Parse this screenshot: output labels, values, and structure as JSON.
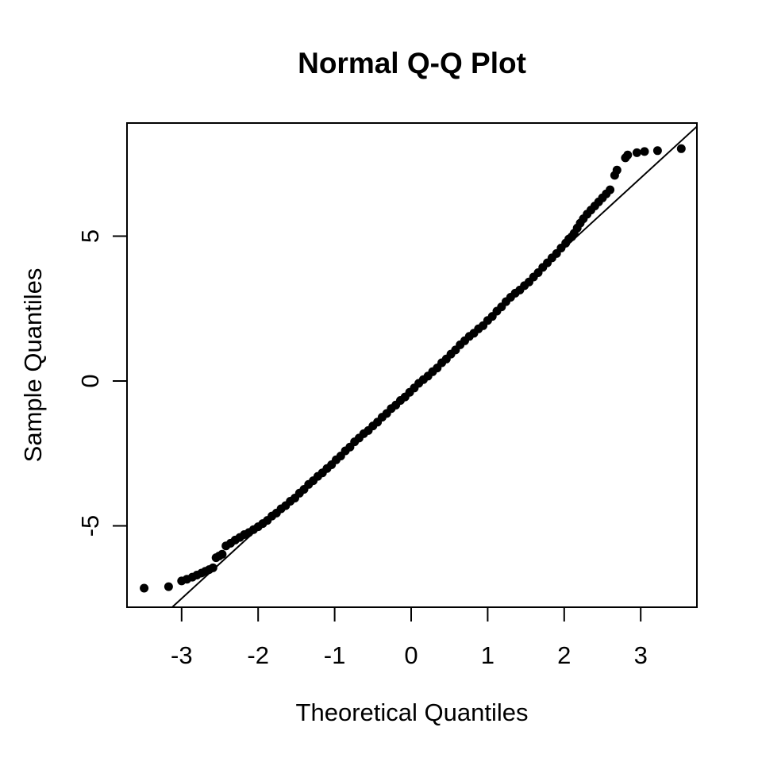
{
  "title": "Normal Q-Q Plot",
  "colors": {
    "foreground": "#000000",
    "background": "#ffffff",
    "point": "#000000",
    "reference_line": "#000000"
  },
  "chart_data": {
    "type": "scatter",
    "title": "Normal Q-Q Plot",
    "xlabel": "Theoretical Quantiles",
    "ylabel": "Sample Quantiles",
    "xlim": [
      -3.73,
      3.8
    ],
    "ylim": [
      -7.8,
      8.9
    ],
    "x_ticks": [
      -3,
      -2,
      -1,
      0,
      1,
      2,
      3
    ],
    "y_ticks": [
      -5,
      0,
      5
    ],
    "grid": false,
    "legend": null,
    "marker": {
      "shape": "filled-circle",
      "radius_px": 5.5,
      "color": "#000000"
    },
    "reference_line": {
      "slope": 2.42,
      "intercept": -0.25,
      "x_start": -3.12,
      "x_end": 3.73
    },
    "points": [
      [
        -3.49,
        -7.15
      ],
      [
        -3.17,
        -7.1
      ],
      [
        -3.0,
        -6.9
      ],
      [
        -2.93,
        -6.84
      ],
      [
        -2.86,
        -6.77
      ],
      [
        -2.8,
        -6.7
      ],
      [
        -2.74,
        -6.63
      ],
      [
        -2.69,
        -6.57
      ],
      [
        -2.64,
        -6.51
      ],
      [
        -2.59,
        -6.45
      ],
      [
        -2.55,
        -6.1
      ],
      [
        -2.51,
        -6.04
      ],
      [
        -2.47,
        -5.98
      ],
      [
        -2.42,
        -5.69
      ],
      [
        -2.36,
        -5.6
      ],
      [
        -2.3,
        -5.49
      ],
      [
        -2.24,
        -5.4
      ],
      [
        -2.18,
        -5.3
      ],
      [
        -2.12,
        -5.23
      ],
      [
        -2.06,
        -5.13
      ],
      [
        -2.0,
        -5.03
      ],
      [
        -1.94,
        -4.92
      ],
      [
        -1.88,
        -4.81
      ],
      [
        -1.82,
        -4.66
      ],
      [
        -1.76,
        -4.56
      ],
      [
        -1.7,
        -4.41
      ],
      [
        -1.64,
        -4.3
      ],
      [
        -1.58,
        -4.15
      ],
      [
        -1.52,
        -4.04
      ],
      [
        -1.46,
        -3.87
      ],
      [
        -1.4,
        -3.74
      ],
      [
        -1.34,
        -3.57
      ],
      [
        -1.28,
        -3.44
      ],
      [
        -1.22,
        -3.29
      ],
      [
        -1.16,
        -3.17
      ],
      [
        -1.1,
        -3.02
      ],
      [
        -1.04,
        -2.89
      ],
      [
        -0.98,
        -2.72
      ],
      [
        -0.92,
        -2.59
      ],
      [
        -0.86,
        -2.41
      ],
      [
        -0.8,
        -2.28
      ],
      [
        -0.74,
        -2.1
      ],
      [
        -0.68,
        -1.97
      ],
      [
        -0.62,
        -1.82
      ],
      [
        -0.56,
        -1.71
      ],
      [
        -0.5,
        -1.55
      ],
      [
        -0.44,
        -1.42
      ],
      [
        -0.38,
        -1.25
      ],
      [
        -0.32,
        -1.12
      ],
      [
        -0.26,
        -0.95
      ],
      [
        -0.2,
        -0.83
      ],
      [
        -0.14,
        -0.67
      ],
      [
        -0.08,
        -0.55
      ],
      [
        -0.02,
        -0.39
      ],
      [
        0.04,
        -0.24
      ],
      [
        0.1,
        -0.08
      ],
      [
        0.16,
        0.05
      ],
      [
        0.22,
        0.17
      ],
      [
        0.28,
        0.32
      ],
      [
        0.34,
        0.45
      ],
      [
        0.4,
        0.63
      ],
      [
        0.46,
        0.76
      ],
      [
        0.52,
        0.93
      ],
      [
        0.58,
        1.07
      ],
      [
        0.64,
        1.25
      ],
      [
        0.7,
        1.39
      ],
      [
        0.76,
        1.54
      ],
      [
        0.82,
        1.65
      ],
      [
        0.88,
        1.8
      ],
      [
        0.94,
        1.91
      ],
      [
        1.0,
        2.09
      ],
      [
        1.06,
        2.23
      ],
      [
        1.12,
        2.41
      ],
      [
        1.18,
        2.56
      ],
      [
        1.24,
        2.74
      ],
      [
        1.3,
        2.89
      ],
      [
        1.36,
        3.03
      ],
      [
        1.42,
        3.14
      ],
      [
        1.48,
        3.29
      ],
      [
        1.54,
        3.42
      ],
      [
        1.6,
        3.59
      ],
      [
        1.66,
        3.74
      ],
      [
        1.72,
        3.92
      ],
      [
        1.78,
        4.08
      ],
      [
        1.84,
        4.25
      ],
      [
        1.9,
        4.4
      ],
      [
        1.96,
        4.59
      ],
      [
        2.02,
        4.76
      ],
      [
        2.06,
        4.9
      ],
      [
        2.1,
        4.98
      ],
      [
        2.13,
        5.1
      ],
      [
        2.17,
        5.28
      ],
      [
        2.21,
        5.45
      ],
      [
        2.25,
        5.6
      ],
      [
        2.3,
        5.76
      ],
      [
        2.35,
        5.9
      ],
      [
        2.4,
        6.04
      ],
      [
        2.45,
        6.18
      ],
      [
        2.5,
        6.32
      ],
      [
        2.55,
        6.46
      ],
      [
        2.6,
        6.6
      ],
      [
        2.66,
        7.1
      ],
      [
        2.69,
        7.28
      ],
      [
        2.8,
        7.7
      ],
      [
        2.83,
        7.8
      ],
      [
        2.95,
        7.88
      ],
      [
        3.05,
        7.92
      ],
      [
        3.22,
        7.95
      ],
      [
        3.53,
        8.02
      ]
    ]
  }
}
